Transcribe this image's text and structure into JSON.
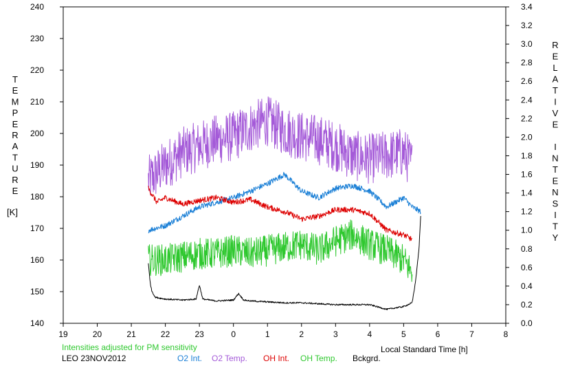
{
  "chart_data": {
    "type": "line",
    "title": "",
    "xlabel": "Local Standard Time [h]",
    "ylabel_left_letters": [
      "T",
      "E",
      "M",
      "P",
      "E",
      "R",
      "A",
      "T",
      "U",
      "R",
      "E"
    ],
    "ylabel_left_unit": "[K]",
    "ylabel_right_words": [
      [
        "R",
        "E",
        "L",
        "A",
        "T",
        "I",
        "V",
        "E"
      ],
      [
        "I",
        "N",
        "T",
        "E",
        "N",
        "S",
        "I",
        "T",
        "Y"
      ]
    ],
    "x_ticks": [
      "19",
      "20",
      "21",
      "22",
      "23",
      "0",
      "1",
      "2",
      "3",
      "4",
      "5",
      "6",
      "7",
      "8"
    ],
    "xlim": [
      19,
      32
    ],
    "y_left_ticks": [
      "140",
      "150",
      "160",
      "170",
      "180",
      "190",
      "200",
      "210",
      "220",
      "230",
      "240"
    ],
    "ylim_left": [
      140,
      240
    ],
    "y_right_ticks": [
      "0.0",
      "0.2",
      "0.4",
      "0.6",
      "0.8",
      "1.0",
      "1.2",
      "1.4",
      "1.6",
      "1.8",
      "2.0",
      "2.2",
      "2.4",
      "2.6",
      "2.8",
      "3.0",
      "3.2",
      "3.4"
    ],
    "ylim_right": [
      0,
      3.4
    ],
    "grid": false,
    "note": "Intensities adjusted for PM sensitivity",
    "station_date": "LEO 23NOV2012",
    "legend": [
      {
        "label": "O2 Int.",
        "color": "#1a7fd6"
      },
      {
        "label": "O2 Temp.",
        "color": "#a45ad8"
      },
      {
        "label": "OH Int.",
        "color": "#dd0000"
      },
      {
        "label": "OH Temp.",
        "color": "#2fc82f"
      },
      {
        "label": "Bckgrd.",
        "color": "#000000"
      }
    ],
    "series": [
      {
        "name": "O2 Temp.",
        "axis": "left",
        "color": "#a45ad8",
        "x": [
          21.5,
          22.0,
          22.5,
          23.0,
          23.5,
          24.0,
          24.5,
          25.0,
          25.5,
          26.0,
          26.5,
          27.0,
          27.5,
          28.0,
          28.5,
          29.0,
          29.25
        ],
        "y": [
          185,
          190,
          194,
          196,
          198,
          199,
          202,
          204,
          201,
          199,
          198,
          196,
          193,
          192,
          193,
          194,
          190
        ],
        "noise": 8.0
      },
      {
        "name": "O2 Int.",
        "axis": "right",
        "color": "#1a7fd6",
        "x": [
          21.5,
          22.0,
          22.5,
          23.0,
          23.5,
          24.0,
          24.5,
          25.0,
          25.5,
          26.0,
          26.5,
          27.0,
          27.5,
          28.0,
          28.5,
          29.0,
          29.25,
          29.5
        ],
        "y": [
          1.0,
          1.05,
          1.15,
          1.25,
          1.3,
          1.35,
          1.42,
          1.5,
          1.6,
          1.42,
          1.35,
          1.45,
          1.48,
          1.42,
          1.25,
          1.35,
          1.25,
          1.2
        ],
        "noise": 0.03
      },
      {
        "name": "OH Int.",
        "axis": "right",
        "color": "#dd0000",
        "x": [
          21.5,
          21.75,
          22.0,
          22.5,
          23.0,
          23.5,
          24.0,
          24.5,
          25.0,
          25.5,
          26.0,
          26.5,
          27.0,
          27.5,
          28.0,
          28.5,
          29.0,
          29.25
        ],
        "y": [
          1.45,
          1.3,
          1.35,
          1.28,
          1.32,
          1.35,
          1.3,
          1.33,
          1.25,
          1.2,
          1.12,
          1.15,
          1.22,
          1.22,
          1.18,
          1.0,
          0.95,
          0.9
        ],
        "noise": 0.03
      },
      {
        "name": "OH Temp.",
        "axis": "left",
        "color": "#2fc82f",
        "x": [
          21.5,
          22.0,
          22.5,
          23.0,
          23.5,
          24.0,
          24.5,
          25.0,
          25.5,
          26.0,
          26.5,
          27.0,
          27.5,
          28.0,
          28.5,
          29.0,
          29.25
        ],
        "y": [
          160,
          160,
          161,
          162,
          162,
          163,
          162,
          163,
          164,
          165,
          163,
          166,
          168,
          165,
          163,
          160,
          156
        ],
        "noise": 5.0
      },
      {
        "name": "Bckgrd.",
        "axis": "right",
        "color": "#000000",
        "x": [
          21.5,
          21.55,
          21.6,
          21.7,
          22.0,
          22.5,
          22.9,
          23.0,
          23.1,
          23.5,
          24.0,
          24.15,
          24.3,
          24.5,
          25.0,
          25.5,
          26.0,
          26.5,
          27.0,
          27.5,
          28.0,
          28.5,
          29.0,
          29.25,
          29.35,
          29.45,
          29.5
        ],
        "y": [
          0.65,
          0.45,
          0.35,
          0.28,
          0.26,
          0.25,
          0.26,
          0.41,
          0.26,
          0.24,
          0.25,
          0.32,
          0.25,
          0.24,
          0.23,
          0.22,
          0.22,
          0.21,
          0.2,
          0.2,
          0.2,
          0.15,
          0.18,
          0.22,
          0.45,
          0.8,
          1.15
        ],
        "noise": 0.008
      }
    ]
  }
}
